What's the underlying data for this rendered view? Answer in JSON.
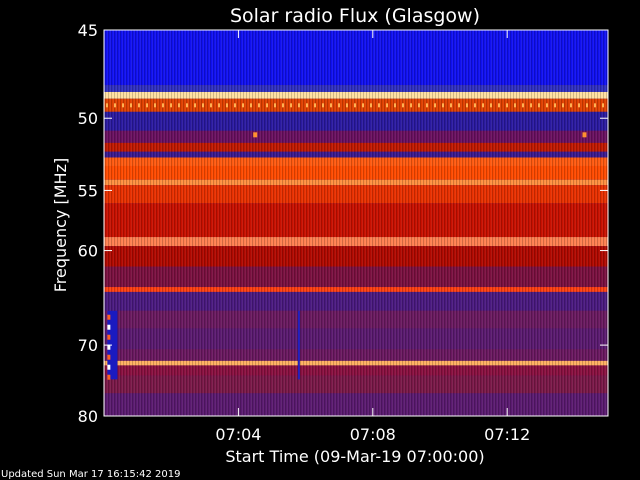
{
  "chart_data": {
    "type": "heatmap",
    "title": "Solar radio Flux (Glasgow)",
    "xlabel": "Start Time (09-Mar-19 07:00:00)",
    "ylabel": "Frequency [MHz]",
    "x_range_minutes": [
      0,
      15
    ],
    "x_ticks": [
      {
        "value": 4,
        "label": "07:04"
      },
      {
        "value": 8,
        "label": "07:08"
      },
      {
        "value": 12,
        "label": "07:12"
      }
    ],
    "ylim": [
      45,
      80
    ],
    "y_ticks": [
      {
        "value": 45,
        "label": "45"
      },
      {
        "value": 50,
        "label": "50"
      },
      {
        "value": 55,
        "label": "55"
      },
      {
        "value": 60,
        "label": "60"
      },
      {
        "value": 70,
        "label": "70"
      },
      {
        "value": 80,
        "label": "80"
      }
    ],
    "y_scale": "reciprocal",
    "colormap": [
      "#0000a0",
      "#2020ff",
      "#6a1a8a",
      "#b00000",
      "#e02000",
      "#ff6a20",
      "#ffd080",
      "#ffffff"
    ],
    "frequency_bands": [
      {
        "from": 45.0,
        "to": 48.0,
        "color": "#1010f0"
      },
      {
        "from": 48.0,
        "to": 48.4,
        "color": "#3030c0"
      },
      {
        "from": 48.4,
        "to": 48.8,
        "color": "#ffe0a0"
      },
      {
        "from": 48.8,
        "to": 49.6,
        "color": "#e04000"
      },
      {
        "from": 49.6,
        "to": 50.8,
        "color": "#2a1aa0"
      },
      {
        "from": 50.8,
        "to": 51.6,
        "color": "#6a1060"
      },
      {
        "from": 51.6,
        "to": 52.2,
        "color": "#c01800"
      },
      {
        "from": 52.2,
        "to": 52.6,
        "color": "#3a1a90"
      },
      {
        "from": 52.6,
        "to": 53.2,
        "color": "#ff5a10"
      },
      {
        "from": 53.2,
        "to": 54.2,
        "color": "#ff4a00"
      },
      {
        "from": 54.2,
        "to": 54.6,
        "color": "#ff9040"
      },
      {
        "from": 54.6,
        "to": 56.0,
        "color": "#e83000"
      },
      {
        "from": 56.0,
        "to": 58.8,
        "color": "#c81000"
      },
      {
        "from": 58.8,
        "to": 59.6,
        "color": "#ff8050"
      },
      {
        "from": 59.6,
        "to": 61.5,
        "color": "#b00800"
      },
      {
        "from": 61.5,
        "to": 63.5,
        "color": "#7a1040"
      },
      {
        "from": 63.5,
        "to": 64.0,
        "color": "#ff4010"
      },
      {
        "from": 64.0,
        "to": 66.0,
        "color": "#4a1a80"
      },
      {
        "from": 66.0,
        "to": 68.0,
        "color": "#6a1a60"
      },
      {
        "from": 68.0,
        "to": 70.5,
        "color": "#5a1a70"
      },
      {
        "from": 70.5,
        "to": 72.0,
        "color": "#6a1860"
      },
      {
        "from": 72.0,
        "to": 72.6,
        "color": "#ffb060"
      },
      {
        "from": 72.6,
        "to": 74.0,
        "color": "#8a1040"
      },
      {
        "from": 74.0,
        "to": 76.5,
        "color": "#7a1848"
      },
      {
        "from": 76.5,
        "to": 80.0,
        "color": "#5a1a70"
      }
    ],
    "features": [
      {
        "kind": "spike_marks",
        "freq": 49.2,
        "color": "#ffb050"
      },
      {
        "kind": "vertical_line",
        "minute": 5.8,
        "from_freq": 66.0,
        "to_freq": 74.5,
        "color": "#2020c0"
      },
      {
        "kind": "dots",
        "minutes": [
          4.5,
          14.3
        ],
        "freq": 51.1,
        "color": "#ff9030"
      },
      {
        "kind": "interference_strip",
        "minute_start": 0.1,
        "minute_end": 0.4,
        "from_freq": 66.0,
        "to_freq": 74.5
      }
    ]
  },
  "footer": {
    "updated_text": "Updated Sun Mar 17 16:15:42 2019"
  }
}
